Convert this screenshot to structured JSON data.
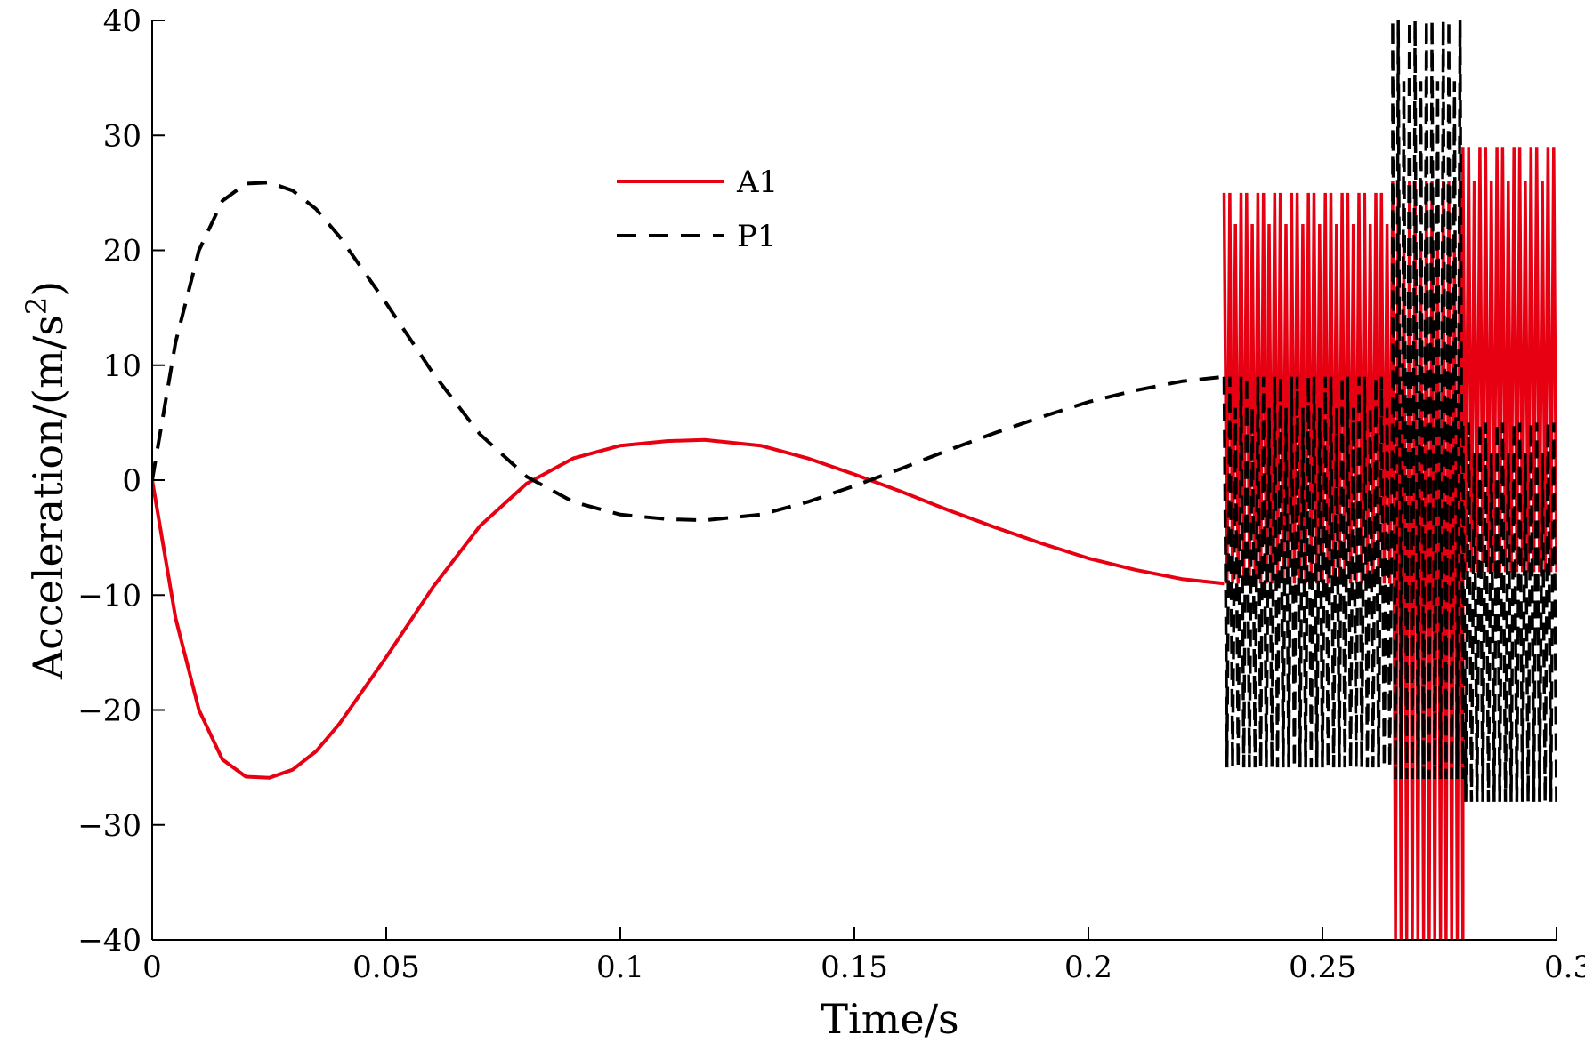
{
  "chart_data": {
    "type": "line",
    "xlabel": "Time/s",
    "ylabel": "Acceleration/(m/s",
    "ylabel_sup": "2",
    "ylabel_close": ")",
    "xlim": [
      0,
      0.3
    ],
    "ylim": [
      -40,
      40
    ],
    "xticks": [
      0,
      0.05,
      0.1,
      0.15,
      0.2,
      0.25,
      0.3
    ],
    "xtick_labels": [
      "0",
      "0.05",
      "0.1",
      "0.15",
      "0.2",
      "0.25",
      "0.3"
    ],
    "yticks": [
      -40,
      -30,
      -20,
      -10,
      0,
      10,
      20,
      30,
      40
    ],
    "ytick_labels": [
      "−40",
      "−30",
      "−20",
      "−10",
      "0",
      "10",
      "20",
      "30",
      "40"
    ],
    "grid": false,
    "legend_position": "upper-center",
    "series": [
      {
        "name": "A1",
        "color": "#e60012",
        "style": "solid",
        "smooth": {
          "x": [
            0,
            0.005,
            0.01,
            0.015,
            0.02,
            0.025,
            0.03,
            0.035,
            0.04,
            0.05,
            0.06,
            0.07,
            0.08,
            0.09,
            0.1,
            0.11,
            0.118,
            0.13,
            0.14,
            0.15,
            0.16,
            0.17,
            0.18,
            0.19,
            0.2,
            0.21,
            0.22,
            0.229
          ],
          "y": [
            0,
            -12,
            -20,
            -24.3,
            -25.8,
            -25.9,
            -25.2,
            -23.6,
            -21.2,
            -15.4,
            -9.3,
            -4.0,
            -0.3,
            1.9,
            3.0,
            3.4,
            3.5,
            3.0,
            1.9,
            0.5,
            -1.0,
            -2.6,
            -4.1,
            -5.5,
            -6.8,
            -7.8,
            -8.6,
            -9.0
          ]
        },
        "burst": [
          {
            "x_start": 0.229,
            "x_end": 0.265,
            "min": -9,
            "max": 25
          },
          {
            "x_start": 0.265,
            "x_end": 0.28,
            "min": -40,
            "max": 26
          },
          {
            "x_start": 0.28,
            "x_end": 0.3,
            "min": -8,
            "max": 29
          }
        ]
      },
      {
        "name": "P1",
        "color": "#000000",
        "style": "dashed",
        "smooth": {
          "x": [
            0,
            0.005,
            0.01,
            0.015,
            0.02,
            0.025,
            0.03,
            0.035,
            0.04,
            0.05,
            0.06,
            0.07,
            0.08,
            0.09,
            0.1,
            0.11,
            0.118,
            0.13,
            0.14,
            0.15,
            0.16,
            0.17,
            0.18,
            0.19,
            0.2,
            0.21,
            0.22,
            0.229
          ],
          "y": [
            0,
            12,
            20,
            24.3,
            25.8,
            25.9,
            25.2,
            23.6,
            21.2,
            15.4,
            9.3,
            4.0,
            0.3,
            -1.9,
            -3.0,
            -3.4,
            -3.5,
            -3.0,
            -1.9,
            -0.5,
            1.0,
            2.6,
            4.1,
            5.5,
            6.8,
            7.8,
            8.6,
            9.0
          ]
        },
        "burst": [
          {
            "x_start": 0.229,
            "x_end": 0.265,
            "min": -25,
            "max": 9
          },
          {
            "x_start": 0.265,
            "x_end": 0.28,
            "min": -26,
            "max": 40
          },
          {
            "x_start": 0.28,
            "x_end": 0.3,
            "min": -28,
            "max": 5
          }
        ]
      }
    ]
  }
}
